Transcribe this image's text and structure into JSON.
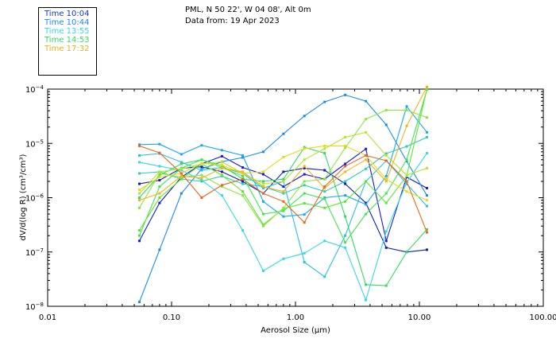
{
  "header": {
    "line1": "PML, N 50 22', W 04 08', Alt 0m",
    "line2": "Data from: 19 Apr 2023"
  },
  "legend": [
    {
      "label": "Time 10:04",
      "color": "#1a33cc"
    },
    {
      "label": "Time 10:44",
      "color": "#1a8ce6"
    },
    {
      "label": "Time 13:55",
      "color": "#33d9e6"
    },
    {
      "label": "Time 14:53",
      "color": "#33d966"
    },
    {
      "label": "Time 17:32",
      "color": "#e6b21a"
    }
  ],
  "chart_data": {
    "type": "line",
    "xscale": "log",
    "yscale": "log",
    "xlim": [
      0.01,
      100.0
    ],
    "ylim": [
      1e-08,
      0.0001
    ],
    "xlabel": "Aerosol Size (μm)",
    "ylabel": "dV/d(log R) (cm³/cm³)",
    "xticks": [
      {
        "value": 0.01,
        "label": "0.01"
      },
      {
        "value": 0.1,
        "label": "0.10"
      },
      {
        "value": 1.0,
        "label": "1.00"
      },
      {
        "value": 10.0,
        "label": "10.00"
      },
      {
        "value": 100.0,
        "label": "100.00"
      }
    ],
    "yticks": [
      {
        "value": 1e-08,
        "mant": "10",
        "exp": "−8"
      },
      {
        "value": 1e-07,
        "mant": "10",
        "exp": "−7"
      },
      {
        "value": 1e-06,
        "mant": "10",
        "exp": "−6"
      },
      {
        "value": 1e-05,
        "mant": "10",
        "exp": "−5"
      },
      {
        "value": 0.0001,
        "mant": "10",
        "exp": "−4"
      }
    ],
    "x": [
      0.055,
      0.08,
      0.12,
      0.175,
      0.255,
      0.375,
      0.55,
      0.8,
      1.18,
      1.72,
      2.52,
      3.7,
      5.4,
      7.9,
      11.5
    ],
    "series": [
      {
        "color": "#0d1fb3",
        "values": [
          1.8e-06,
          2.1e-06,
          3.5e-06,
          3.7e-06,
          3e-06,
          2e-06,
          1.2e-06,
          3e-06,
          3.5e-06,
          3.2e-06,
          1.8e-06,
          8e-07,
          1.2e-07,
          1e-07,
          1.1e-07
        ]
      },
      {
        "color": "#1a1ad9",
        "values": [
          1.6e-07,
          8e-07,
          2.4e-06,
          4.2e-06,
          5.8e-06,
          3.6e-06,
          2.7e-06,
          1.6e-06,
          2.7e-06,
          2.2e-06,
          4.2e-06,
          7.9e-06,
          1.6e-07,
          2.4e-06,
          1.5e-06
        ]
      },
      {
        "color": "#1a8ce6",
        "values": [
          1.2e-08,
          1.1e-07,
          1.2e-06,
          3.4e-06,
          4.6e-06,
          5.5e-06,
          7e-06,
          1.5e-05,
          3.2e-05,
          5.8e-05,
          7.8e-05,
          6e-05,
          2.2e-05,
          4.7e-06,
          1.1e-06
        ]
      },
      {
        "color": "#1aa6f2",
        "values": [
          9.5e-06,
          9.7e-06,
          6.3e-06,
          9.2e-06,
          7.5e-06,
          6e-06,
          8.5e-07,
          4.5e-07,
          4.9e-07,
          1e-06,
          1.1e-06,
          7.5e-07,
          2.5e-06,
          4.8e-05,
          1.6e-05
        ]
      },
      {
        "color": "#33d9e6",
        "values": [
          4.5e-06,
          3.8e-06,
          3.2e-06,
          2.1e-06,
          1.1e-06,
          2.5e-07,
          4.5e-08,
          7.5e-08,
          9.5e-08,
          1.6e-07,
          1.2e-07,
          1.3e-08,
          2.4e-07,
          1.9e-06,
          6.6e-06
        ]
      },
      {
        "color": "#29bfe6",
        "values": [
          6e-06,
          6.5e-06,
          4.5e-06,
          3.2e-06,
          3.6e-06,
          2.8e-06,
          1.5e-06,
          2e-06,
          6.5e-08,
          3.5e-08,
          2e-07,
          2e-06,
          4.8e-06,
          1.8e-06,
          7e-07
        ]
      },
      {
        "color": "#2eccb3",
        "values": [
          2.8e-06,
          3e-06,
          2.2e-06,
          2e-06,
          2.5e-06,
          1.8e-06,
          1.6e-06,
          1.2e-06,
          1.7e-06,
          1.3e-06,
          2e-06,
          3.4e-06,
          6.5e-06,
          8.8e-06,
          1.3e-05
        ]
      },
      {
        "color": "#33d966",
        "values": [
          1e-06,
          2.6e-06,
          4.2e-06,
          5e-06,
          3.9e-06,
          2.2e-06,
          2e-06,
          2.2e-06,
          8.5e-06,
          6.6e-06,
          4.5e-07,
          2.5e-08,
          2.4e-08,
          1e-07,
          2.6e-07
        ]
      },
      {
        "color": "#40e64d",
        "values": [
          2e-07,
          1.6e-06,
          3.5e-06,
          5e-06,
          3.6e-06,
          2.5e-06,
          5e-07,
          5.7e-07,
          1.2e-06,
          9.5e-07,
          1.5e-07,
          5e-07,
          1.2e-06,
          5e-06,
          9.8e-05
        ]
      },
      {
        "color": "#5ce633",
        "values": [
          2.5e-07,
          1e-06,
          2.2e-06,
          4.2e-06,
          2.6e-06,
          1.3e-06,
          3.2e-07,
          6.3e-07,
          7.9e-07,
          6.5e-07,
          8.5e-07,
          2e-06,
          8e-07,
          2.5e-06,
          0.0001
        ]
      },
      {
        "color": "#8ce640",
        "values": [
          6.5e-07,
          2.8e-06,
          2.4e-06,
          2.6e-06,
          1.6e-06,
          1.1e-06,
          3e-07,
          6.5e-07,
          2e-06,
          2.2e-06,
          8.3e-06,
          2.8e-05,
          4.1e-05,
          4.1e-05,
          3e-05
        ]
      },
      {
        "color": "#b3e626",
        "values": [
          1.2e-06,
          3e-06,
          3.4e-06,
          4.2e-06,
          4.6e-06,
          2.8e-06,
          1.8e-06,
          2e-06,
          5e-06,
          8e-06,
          1.3e-05,
          1.6e-05,
          6e-06,
          2.6e-06,
          3.5e-06
        ]
      },
      {
        "color": "#e6d91a",
        "values": [
          1.4e-06,
          2.4e-06,
          2.8e-06,
          4.3e-06,
          4e-06,
          2.8e-06,
          3e-06,
          5.6e-06,
          8e-06,
          9e-06,
          9e-06,
          6e-06,
          2.2e-06,
          1.3e-06,
          9e-07
        ]
      },
      {
        "color": "#f2b31a",
        "values": [
          9e-07,
          1.2e-06,
          2.5e-06,
          2.3e-06,
          3.5e-06,
          3e-06,
          1.6e-06,
          1.3e-06,
          3.8e-06,
          1.5e-06,
          3e-06,
          5e-06,
          2e-06,
          2.1e-05,
          0.00011
        ]
      },
      {
        "color": "#e6661a",
        "values": [
          9e-06,
          6.7e-06,
          2.8e-06,
          1e-06,
          1.7e-06,
          2.2e-06,
          1.2e-06,
          8.5e-07,
          3.5e-07,
          1.6e-06,
          3.8e-06,
          6e-06,
          4.8e-06,
          2e-06,
          2.3e-07
        ]
      }
    ]
  }
}
